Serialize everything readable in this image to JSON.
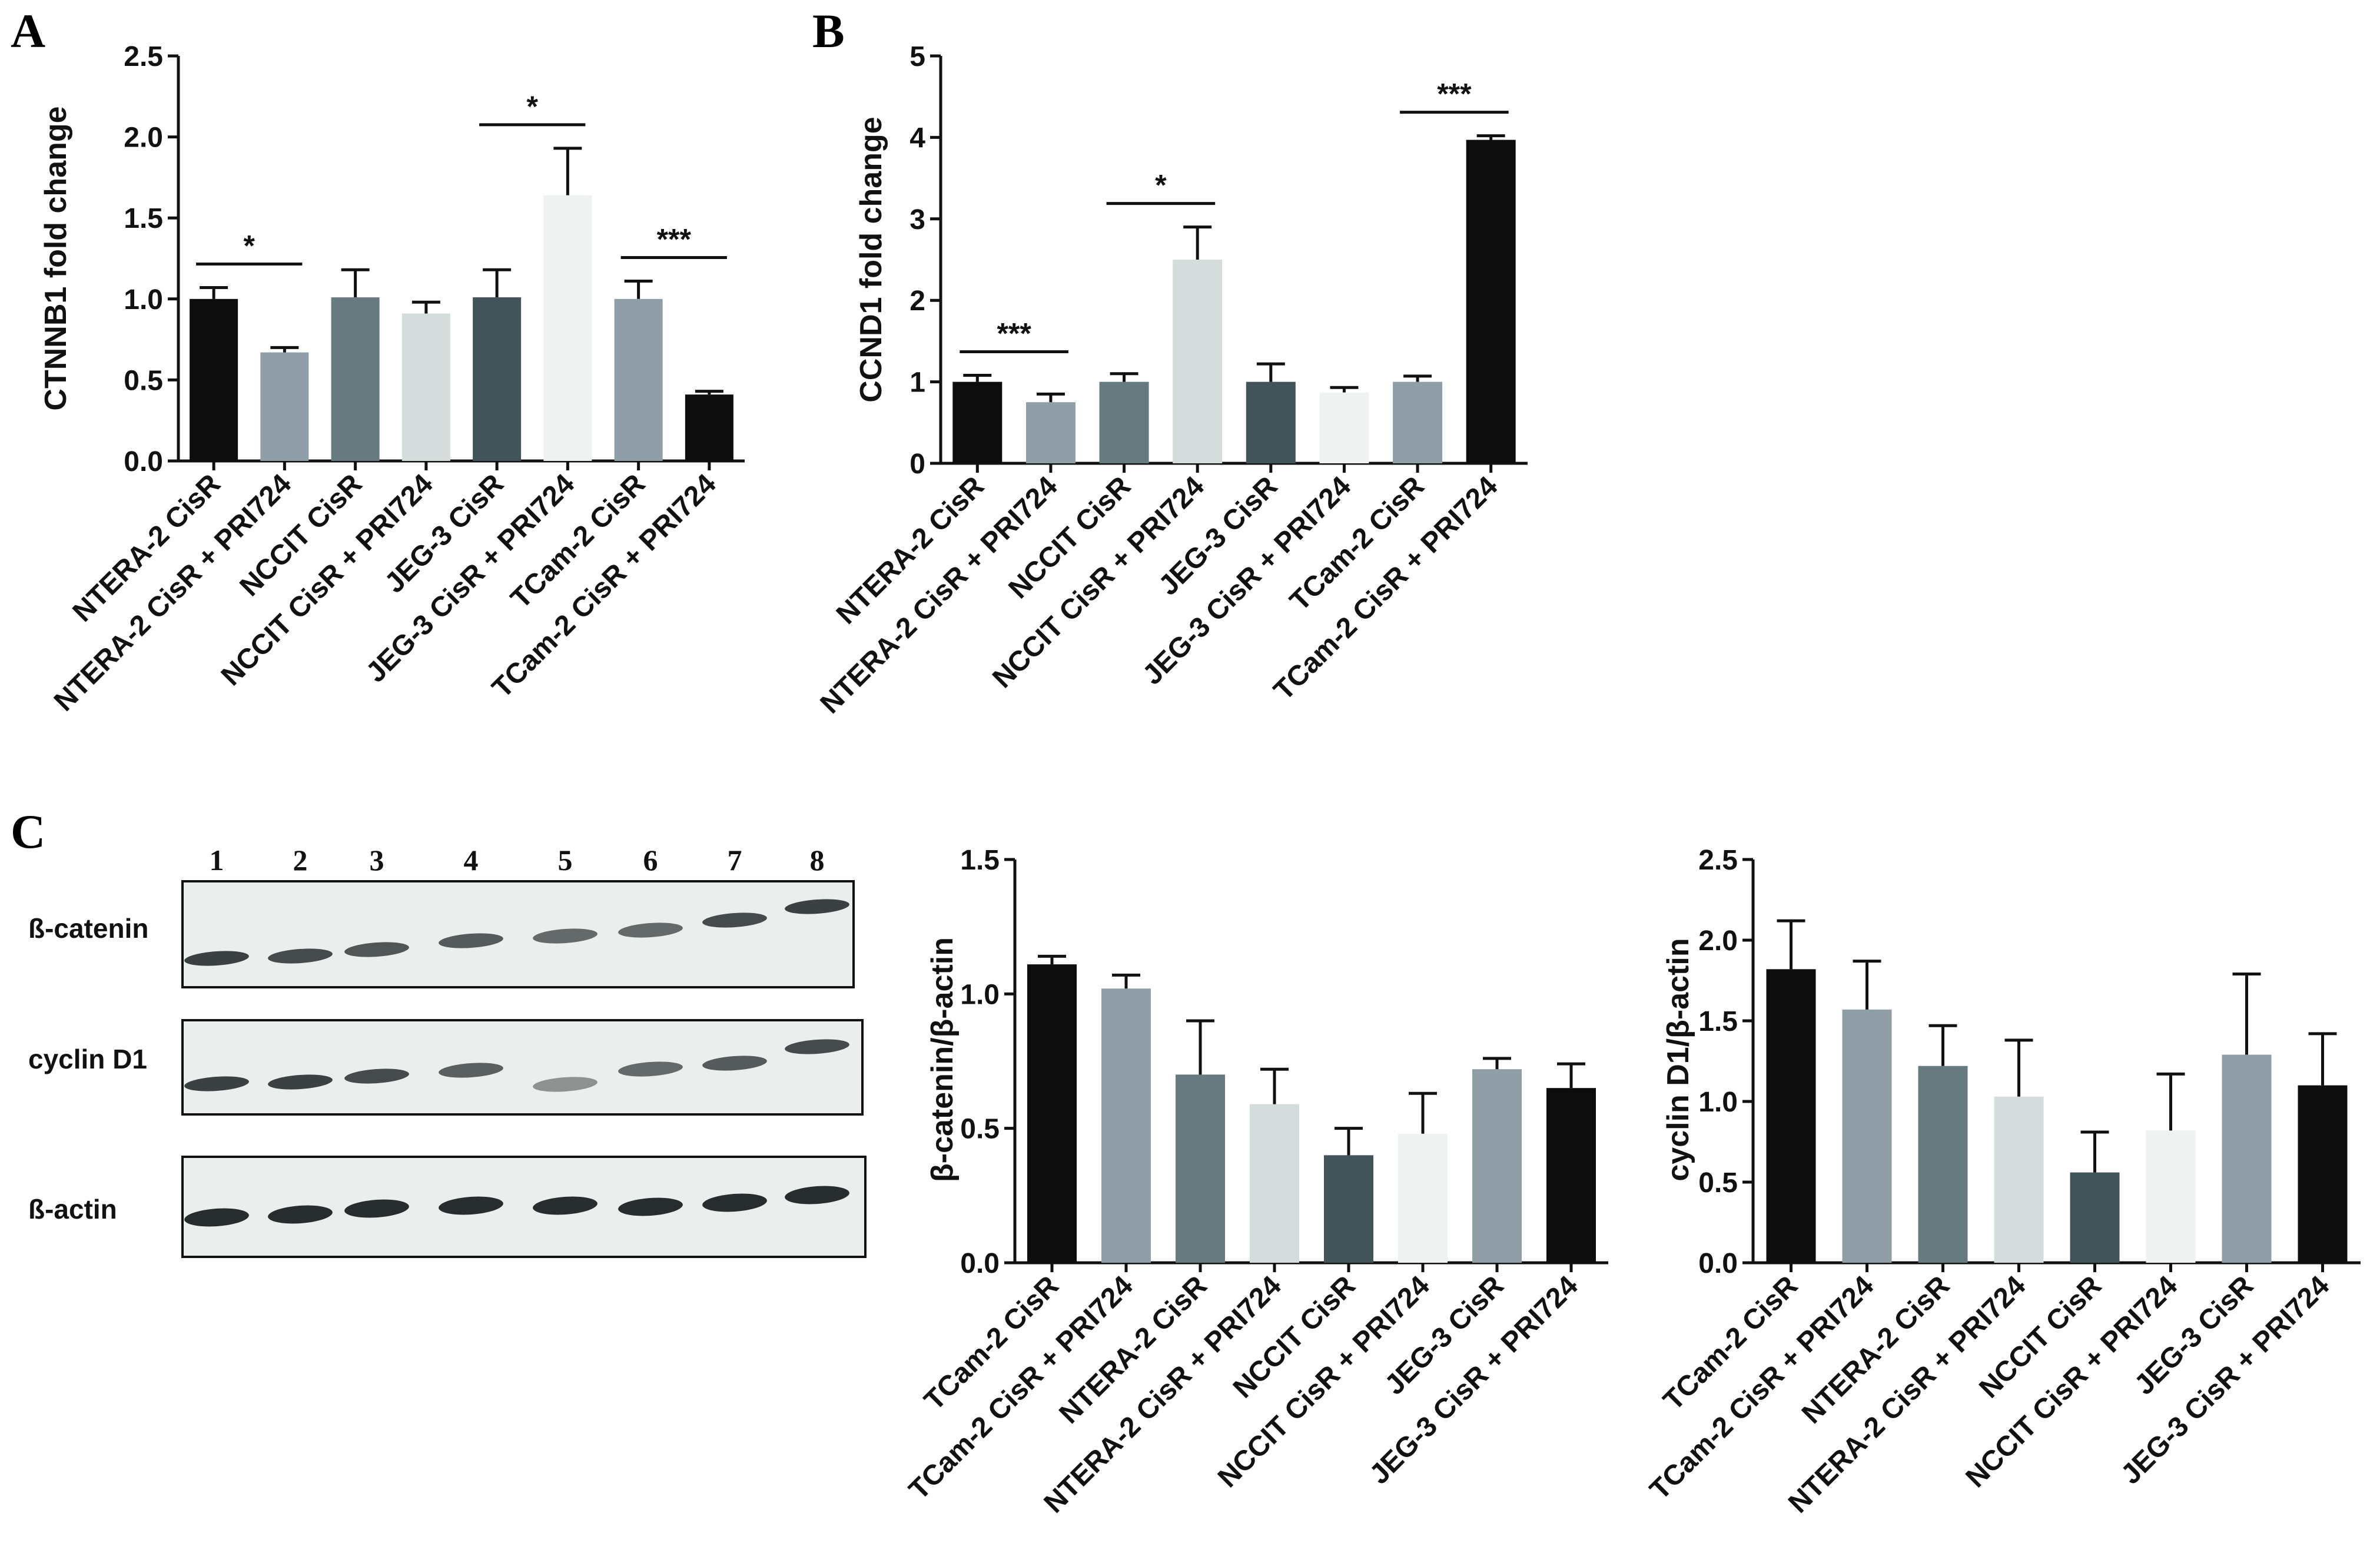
{
  "panels": {
    "A": "A",
    "B": "B",
    "C": "C"
  },
  "colors": {
    "bars": [
      "#0d0d0d",
      "#8f9ea7",
      "#667a7f",
      "#d4dcdc",
      "#43535a",
      "#eef2f0",
      "#8f9ea7",
      "#0d0d0d"
    ],
    "blot_background": "#eaeeec",
    "band": "#1c2224"
  },
  "blot": {
    "lane_numbers": [
      "1",
      "2",
      "3",
      "4",
      "5",
      "6",
      "7",
      "8"
    ],
    "rows": [
      {
        "label": "ß-catenin",
        "intensity": [
          0.85,
          0.8,
          0.75,
          0.72,
          0.65,
          0.65,
          0.8,
          0.85
        ]
      },
      {
        "label": "cyclin D1",
        "intensity": [
          0.85,
          0.85,
          0.8,
          0.7,
          0.45,
          0.65,
          0.72,
          0.8
        ]
      },
      {
        "label": "ß-actin",
        "intensity": [
          0.95,
          0.95,
          0.95,
          0.95,
          0.95,
          0.95,
          0.95,
          0.95
        ]
      }
    ]
  },
  "chart_data": [
    {
      "panel": "A",
      "type": "bar",
      "ylabel": "CTNNB1 fold change",
      "ylim": [
        0,
        2.5
      ],
      "yticks": [
        "0.0",
        "0.5",
        "1.0",
        "1.5",
        "2.0",
        "2.5"
      ],
      "categories": [
        "NTERA-2 CisR",
        "NTERA-2 CisR + PRI724",
        "NCCIT CisR",
        "NCCIT CisR + PRI724",
        "JEG-3 CisR",
        "JEG-3 CisR + PRI724",
        "TCam-2 CisR",
        "TCam-2 CisR + PRI724"
      ],
      "values": [
        1.0,
        0.67,
        1.01,
        0.91,
        1.01,
        1.64,
        1.0,
        0.41
      ],
      "errors": [
        0.07,
        0.03,
        0.17,
        0.07,
        0.17,
        0.29,
        0.11,
        0.02
      ],
      "significance": [
        {
          "pair": [
            0,
            1
          ],
          "label": "*"
        },
        {
          "pair": [
            4,
            5
          ],
          "label": "*"
        },
        {
          "pair": [
            6,
            7
          ],
          "label": "***"
        }
      ]
    },
    {
      "panel": "B",
      "type": "bar",
      "ylabel": "CCND1 fold change",
      "ylim": [
        0,
        5
      ],
      "yticks": [
        "0",
        "1",
        "2",
        "3",
        "4",
        "5"
      ],
      "categories": [
        "NTERA-2 CisR",
        "NTERA-2 CisR + PRI724",
        "NCCIT CisR",
        "NCCIT CisR + PRI724",
        "JEG-3 CisR",
        "JEG-3 CisR + PRI724",
        "TCam-2 CisR",
        "TCam-2 CisR + PRI724"
      ],
      "values": [
        1.0,
        0.75,
        1.0,
        2.5,
        1.0,
        0.87,
        1.0,
        3.97
      ],
      "errors": [
        0.08,
        0.1,
        0.1,
        0.4,
        0.22,
        0.06,
        0.07,
        0.05
      ],
      "significance": [
        {
          "pair": [
            0,
            1
          ],
          "label": "***"
        },
        {
          "pair": [
            2,
            3
          ],
          "label": "*"
        },
        {
          "pair": [
            6,
            7
          ],
          "label": "***"
        }
      ]
    },
    {
      "panel": "C-1",
      "type": "bar",
      "ylabel": "β-catenin/β-actin",
      "ylim": [
        0,
        1.5
      ],
      "yticks": [
        "0.0",
        "0.5",
        "1.0",
        "1.5"
      ],
      "categories": [
        "TCam-2 CisR",
        "TCam-2 CisR + PRI724",
        "NTERA-2 CisR",
        "NTERA-2 CisR + PRI724",
        "NCCIT CisR",
        "NCCIT CisR + PRI724",
        "JEG-3 CisR",
        "JEG-3 CisR + PRI724"
      ],
      "values": [
        1.11,
        1.02,
        0.7,
        0.59,
        0.4,
        0.48,
        0.72,
        0.65
      ],
      "errors": [
        0.03,
        0.05,
        0.2,
        0.13,
        0.1,
        0.15,
        0.04,
        0.09
      ],
      "significance": []
    },
    {
      "panel": "C-2",
      "type": "bar",
      "ylabel": "cyclin D1/β-actin",
      "ylim": [
        0,
        2.5
      ],
      "yticks": [
        "0.0",
        "0.5",
        "1.0",
        "1.5",
        "2.0",
        "2.5"
      ],
      "categories": [
        "TCam-2 CisR",
        "TCam-2 CisR + PRI724",
        "NTERA-2 CisR",
        "NTERA-2 CisR + PRI724",
        "NCCIT CisR",
        "NCCIT CisR + PRI724",
        "JEG-3 CisR",
        "JEG-3 CisR + PRI724"
      ],
      "values": [
        1.82,
        1.57,
        1.22,
        1.03,
        0.56,
        0.82,
        1.29,
        1.1
      ],
      "errors": [
        0.3,
        0.3,
        0.25,
        0.35,
        0.25,
        0.35,
        0.5,
        0.32
      ],
      "significance": []
    }
  ]
}
